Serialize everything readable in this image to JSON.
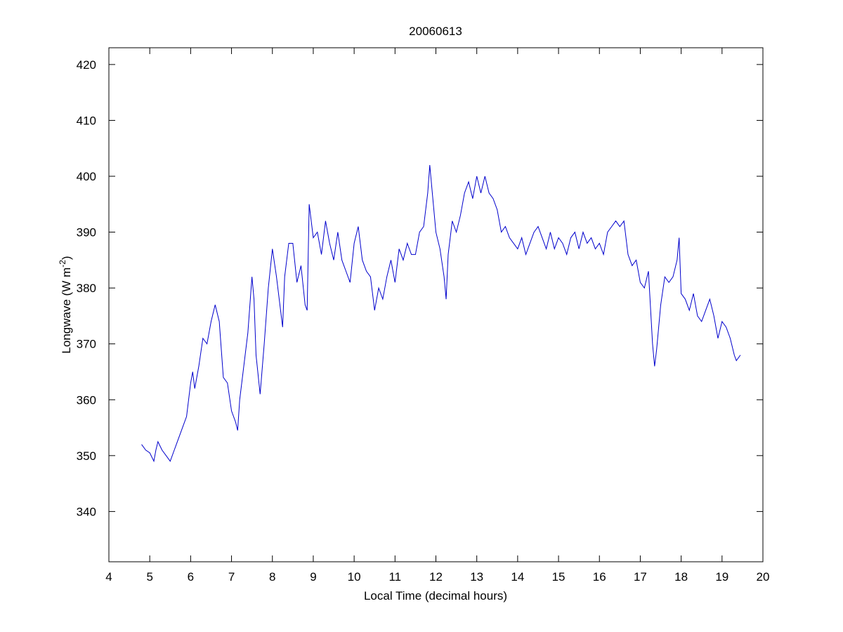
{
  "chart_data": {
    "type": "line",
    "title": "20060613",
    "xlabel": "Local Time (decimal hours)",
    "ylabel": {
      "text": "Longwave (W m",
      "superscript": "-2",
      "close": ")"
    },
    "color": "#0000cc",
    "xlim": [
      4,
      20
    ],
    "xticks": [
      4,
      5,
      6,
      7,
      8,
      9,
      10,
      11,
      12,
      13,
      14,
      15,
      16,
      17,
      18,
      19,
      20
    ],
    "ylim": [
      331,
      423
    ],
    "yticks": [
      340,
      350,
      360,
      370,
      380,
      390,
      400,
      410,
      420
    ],
    "x": [
      4.8,
      4.9,
      5.0,
      5.1,
      5.15,
      5.2,
      5.3,
      5.4,
      5.5,
      5.6,
      5.7,
      5.8,
      5.9,
      6.0,
      6.05,
      6.1,
      6.2,
      6.3,
      6.4,
      6.5,
      6.6,
      6.7,
      6.8,
      6.9,
      7.0,
      7.1,
      7.15,
      7.2,
      7.3,
      7.4,
      7.5,
      7.55,
      7.6,
      7.7,
      7.8,
      7.9,
      8.0,
      8.1,
      8.2,
      8.25,
      8.3,
      8.4,
      8.5,
      8.6,
      8.7,
      8.8,
      8.85,
      8.9,
      9.0,
      9.1,
      9.2,
      9.3,
      9.4,
      9.5,
      9.6,
      9.7,
      9.8,
      9.9,
      10.0,
      10.1,
      10.2,
      10.3,
      10.4,
      10.5,
      10.6,
      10.7,
      10.8,
      10.9,
      11.0,
      11.1,
      11.2,
      11.3,
      11.4,
      11.5,
      11.6,
      11.7,
      11.8,
      11.85,
      11.9,
      12.0,
      12.1,
      12.2,
      12.25,
      12.3,
      12.4,
      12.5,
      12.6,
      12.7,
      12.8,
      12.9,
      13.0,
      13.1,
      13.2,
      13.3,
      13.4,
      13.5,
      13.6,
      13.7,
      13.8,
      13.9,
      14.0,
      14.1,
      14.2,
      14.3,
      14.4,
      14.5,
      14.6,
      14.7,
      14.8,
      14.9,
      15.0,
      15.1,
      15.2,
      15.3,
      15.4,
      15.5,
      15.6,
      15.7,
      15.8,
      15.9,
      16.0,
      16.1,
      16.2,
      16.3,
      16.4,
      16.5,
      16.6,
      16.7,
      16.8,
      16.9,
      17.0,
      17.1,
      17.2,
      17.3,
      17.35,
      17.4,
      17.5,
      17.6,
      17.7,
      17.8,
      17.9,
      17.95,
      18.0,
      18.1,
      18.2,
      18.3,
      18.4,
      18.5,
      18.6,
      18.7,
      18.8,
      18.9,
      19.0,
      19.1,
      19.2,
      19.3,
      19.35,
      19.45
    ],
    "values": [
      352,
      351,
      350.5,
      349,
      351,
      352.5,
      351,
      350,
      349,
      351,
      353,
      355,
      357,
      363,
      365,
      362,
      366,
      371,
      370,
      374,
      377,
      374,
      364,
      363,
      358,
      356,
      354.5,
      360,
      366,
      372,
      382,
      378,
      368,
      361,
      370,
      380,
      387,
      382,
      376,
      373,
      382,
      388,
      388,
      381,
      384,
      377,
      376,
      395,
      389,
      390,
      386,
      392,
      388,
      385,
      390,
      385,
      383,
      381,
      388,
      391,
      385,
      383,
      382,
      376,
      380,
      378,
      382,
      385,
      381,
      387,
      385,
      388,
      386,
      386,
      390,
      391,
      397,
      402,
      398,
      390,
      387,
      382,
      378,
      386,
      392,
      390,
      393,
      397,
      399,
      396,
      400,
      397,
      400,
      397,
      396,
      394,
      390,
      391,
      389,
      388,
      387,
      389,
      386,
      388,
      390,
      391,
      389,
      387,
      390,
      387,
      389,
      388,
      386,
      389,
      390,
      387,
      390,
      388,
      389,
      387,
      388,
      386,
      390,
      391,
      392,
      391,
      392,
      386,
      384,
      385,
      381,
      380,
      383,
      370,
      366,
      369,
      377,
      382,
      381,
      382,
      385,
      389,
      379,
      378,
      376,
      379,
      375,
      374,
      376,
      378,
      375,
      371,
      374,
      373,
      371,
      368,
      367,
      368
    ]
  }
}
